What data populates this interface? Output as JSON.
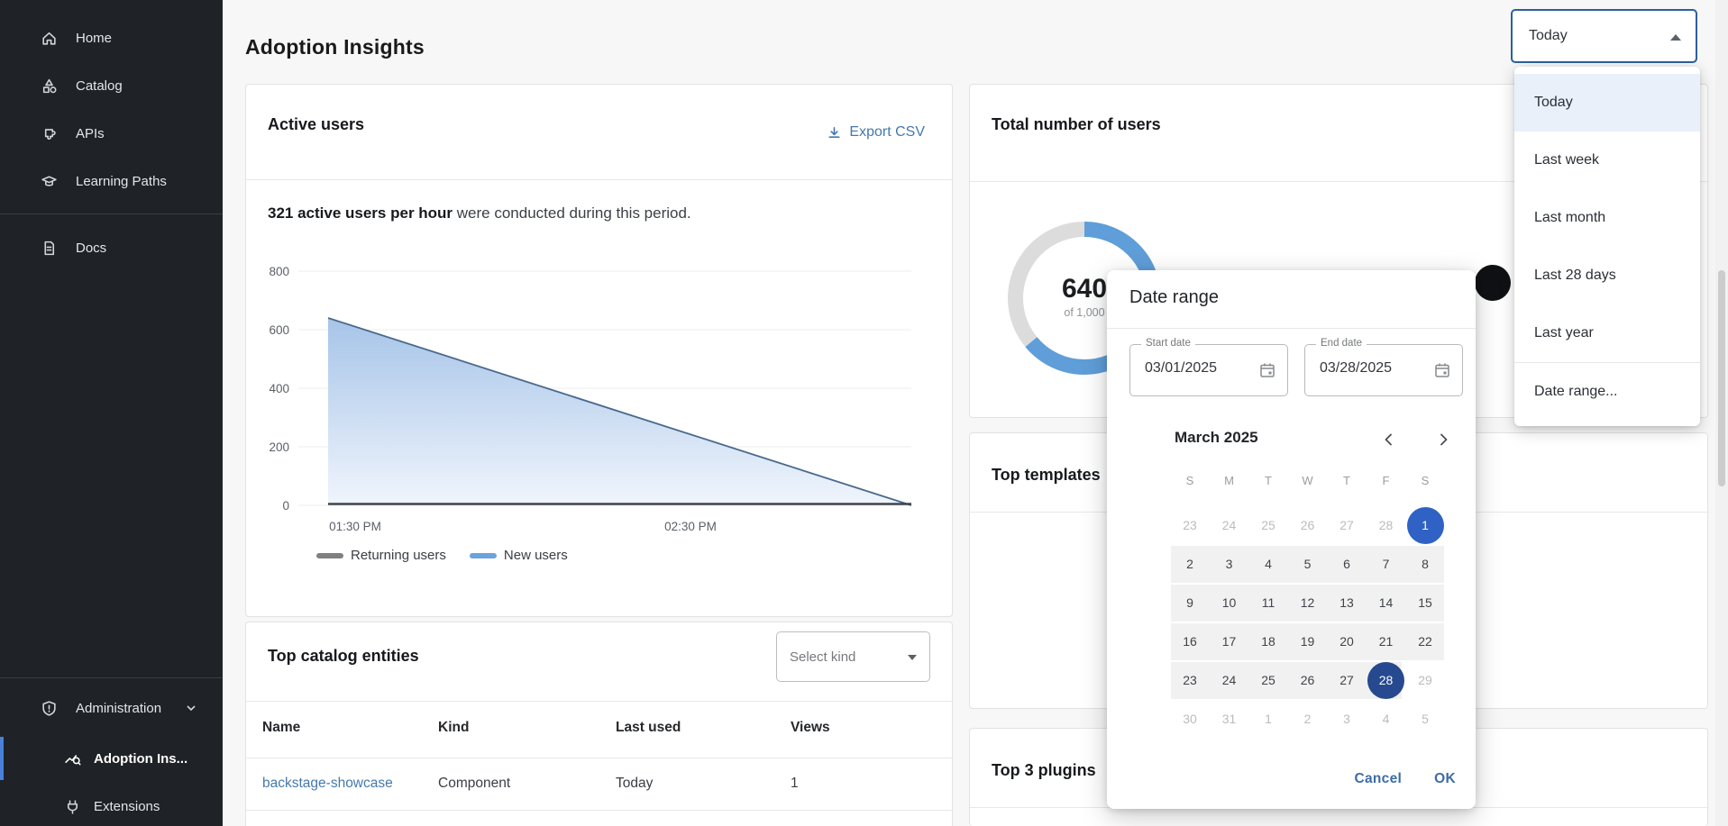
{
  "header": {
    "title": "Adoption Insights"
  },
  "range_select": {
    "value": "Today"
  },
  "range_menu": {
    "items": [
      "Today",
      "Last week",
      "Last month",
      "Last 28 days",
      "Last year"
    ],
    "selected": "Today",
    "footer_item": "Date range..."
  },
  "sidebar": {
    "items": [
      {
        "label": "Home",
        "icon": "home-icon"
      },
      {
        "label": "Catalog",
        "icon": "catalog-icon"
      },
      {
        "label": "APIs",
        "icon": "apis-icon"
      },
      {
        "label": "Learning Paths",
        "icon": "learning-paths-icon"
      },
      {
        "label": "Docs",
        "icon": "docs-icon"
      }
    ],
    "admin": {
      "label": "Administration",
      "icon": "shield-icon"
    },
    "admin_children": [
      {
        "label": "Adoption Ins...",
        "icon": "insights-icon",
        "active": true
      },
      {
        "label": "Extensions",
        "icon": "plug-icon",
        "active": false
      }
    ]
  },
  "active_users_card": {
    "title": "Active users",
    "export_label": "Export CSV",
    "summary_bold": "321 active users per hour",
    "summary_rest": " were conducted during this period."
  },
  "total_users_card": {
    "title": "Total number of users",
    "value": "640",
    "subtitle": "of 1,000"
  },
  "top_templates_card": {
    "title": "Top templates"
  },
  "top_plugins_card": {
    "title": "Top 3 plugins"
  },
  "catalog_card": {
    "title": "Top catalog entities",
    "kind_select_placeholder": "Select kind",
    "columns": [
      "Name",
      "Kind",
      "Last used",
      "Views"
    ],
    "rows": [
      {
        "name": "backstage-showcase",
        "kind": "Component",
        "last_used": "Today",
        "views": "1"
      }
    ]
  },
  "dialog": {
    "title": "Date range",
    "start_label": "Start date",
    "start_value": "03/01/2025",
    "end_label": "End date",
    "end_value": "03/28/2025",
    "month_label": "March 2025",
    "weekdays": [
      "S",
      "M",
      "T",
      "W",
      "T",
      "F",
      "S"
    ],
    "weeks": [
      {
        "band": "none",
        "days": [
          {
            "t": "23",
            "s": "muted"
          },
          {
            "t": "24",
            "s": "muted"
          },
          {
            "t": "25",
            "s": "muted"
          },
          {
            "t": "26",
            "s": "muted"
          },
          {
            "t": "27",
            "s": "muted"
          },
          {
            "t": "28",
            "s": "muted"
          },
          {
            "t": "1",
            "s": "start"
          }
        ]
      },
      {
        "band": "full",
        "days": [
          {
            "t": "2"
          },
          {
            "t": "3"
          },
          {
            "t": "4"
          },
          {
            "t": "5"
          },
          {
            "t": "6"
          },
          {
            "t": "7"
          },
          {
            "t": "8"
          }
        ]
      },
      {
        "band": "full",
        "days": [
          {
            "t": "9"
          },
          {
            "t": "10"
          },
          {
            "t": "11"
          },
          {
            "t": "12"
          },
          {
            "t": "13"
          },
          {
            "t": "14"
          },
          {
            "t": "15"
          }
        ]
      },
      {
        "band": "full",
        "days": [
          {
            "t": "16"
          },
          {
            "t": "17"
          },
          {
            "t": "18"
          },
          {
            "t": "19"
          },
          {
            "t": "20"
          },
          {
            "t": "21"
          },
          {
            "t": "22"
          }
        ]
      },
      {
        "band": "partial",
        "days": [
          {
            "t": "23"
          },
          {
            "t": "24"
          },
          {
            "t": "25"
          },
          {
            "t": "26"
          },
          {
            "t": "27"
          },
          {
            "t": "28",
            "s": "end"
          },
          {
            "t": "29",
            "s": "muted"
          }
        ]
      },
      {
        "band": "none",
        "days": [
          {
            "t": "30",
            "s": "muted"
          },
          {
            "t": "31",
            "s": "muted"
          },
          {
            "t": "1",
            "s": "muted"
          },
          {
            "t": "2",
            "s": "muted"
          },
          {
            "t": "3",
            "s": "muted"
          },
          {
            "t": "4",
            "s": "muted"
          },
          {
            "t": "5",
            "s": "muted"
          }
        ]
      }
    ],
    "cancel_label": "Cancel",
    "ok_label": "OK"
  },
  "chart_data": [
    {
      "type": "area",
      "title": "Active users",
      "x_ticks": [
        "01:30 PM",
        "02:30 PM"
      ],
      "y_ticks": [
        800,
        600,
        400,
        200,
        0
      ],
      "ylim": [
        0,
        800
      ],
      "grid": true,
      "legend_position": "bottom",
      "series": [
        {
          "name": "Returning users",
          "color": "#3f444a",
          "fill": false,
          "points": [
            [
              0,
              0
            ],
            [
              1,
              0
            ]
          ]
        },
        {
          "name": "New users",
          "color": "#49698c",
          "fill": true,
          "fill_top": "#a6c4e8",
          "fill_bottom": "#f0f5fc",
          "points": [
            [
              0,
              640
            ],
            [
              1,
              0
            ]
          ]
        }
      ]
    },
    {
      "type": "donut",
      "title": "Total number of users",
      "value": 640,
      "total": 1000,
      "percent": 64,
      "filled_color": "#5f9ed8",
      "empty_color": "#dcdcdc"
    }
  ]
}
